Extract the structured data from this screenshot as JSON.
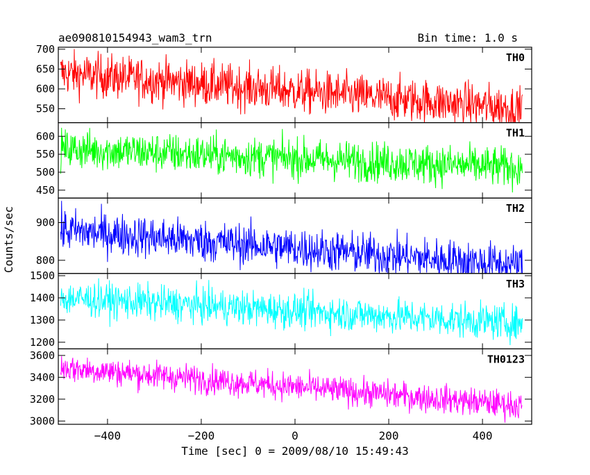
{
  "chart_data": {
    "type": "line",
    "title": "ae090810154943_wam3_trn",
    "bin_time": "Bin time: 1.0 s",
    "xlabel": "Time [sec] 0 = 2009/08/10 15:49:43",
    "ylabel": "Counts/sec",
    "xlim": [
      -505,
      505
    ],
    "x_ticks": [
      -400,
      -200,
      0,
      200,
      400
    ],
    "x_tick_labels": [
      "−400",
      "−200",
      "0",
      "200",
      "400"
    ],
    "x_range": [
      -500,
      485
    ],
    "panels": [
      {
        "name": "TH0",
        "color": "#ff0000",
        "ylim": [
          515,
          705
        ],
        "yticks": [
          550,
          600,
          650,
          700
        ],
        "trend": [
          640,
          550
        ],
        "noise": 28
      },
      {
        "name": "TH1",
        "color": "#00ff00",
        "ylim": [
          428,
          638
        ],
        "yticks": [
          450,
          500,
          550,
          600
        ],
        "trend": [
          565,
          512
        ],
        "noise": 28
      },
      {
        "name": "TH2",
        "color": "#0000ff",
        "ylim": [
          765,
          965
        ],
        "yticks": [
          800,
          900
        ],
        "trend": [
          880,
          785
        ],
        "noise": 28
      },
      {
        "name": "TH3",
        "color": "#00ffff",
        "ylim": [
          1170,
          1510
        ],
        "yticks": [
          1200,
          1300,
          1400,
          1500
        ],
        "trend": [
          1400,
          1285
        ],
        "noise": 40
      },
      {
        "name": "TH0123",
        "color": "#ff00ff",
        "ylim": [
          2970,
          3660
        ],
        "yticks": [
          3000,
          3200,
          3400,
          3600
        ],
        "trend": [
          3490,
          3140
        ],
        "noise": 65
      }
    ]
  }
}
